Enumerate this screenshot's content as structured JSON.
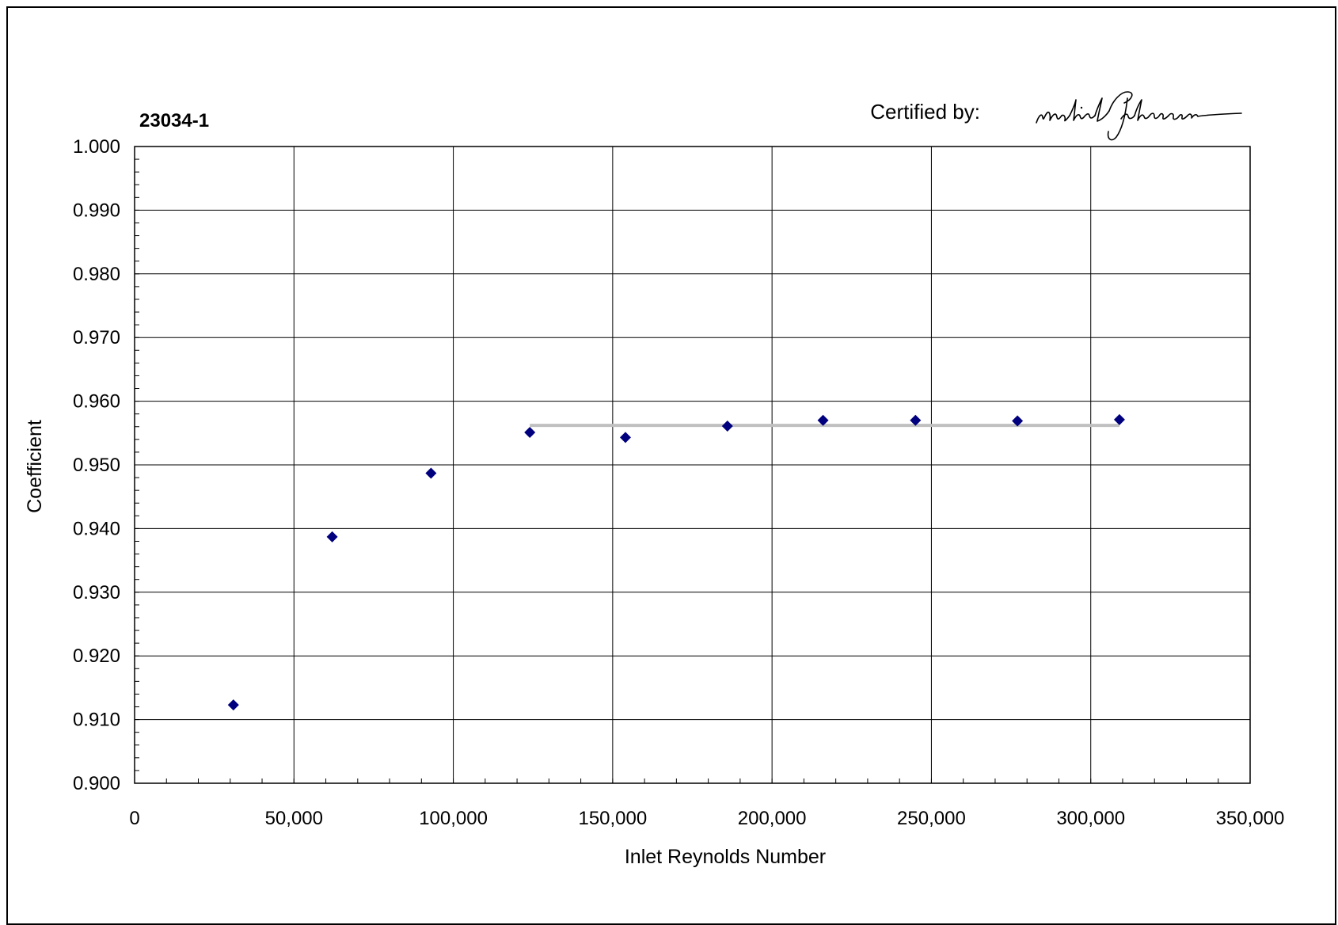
{
  "chart_data": {
    "type": "scatter",
    "title": "23034-1",
    "certification": {
      "label": "Certified by:",
      "signature": "Michael Johnson"
    },
    "xlabel": "Inlet Reynolds Number",
    "ylabel": "Coefficient",
    "xlim": [
      0,
      350000
    ],
    "ylim": [
      0.9,
      1.0
    ],
    "x_ticks": [
      {
        "value": 0,
        "label": "0"
      },
      {
        "value": 50000,
        "label": "50,000"
      },
      {
        "value": 100000,
        "label": "100,000"
      },
      {
        "value": 150000,
        "label": "150,000"
      },
      {
        "value": 200000,
        "label": "200,000"
      },
      {
        "value": 250000,
        "label": "250,000"
      },
      {
        "value": 300000,
        "label": "300,000"
      },
      {
        "value": 350000,
        "label": "350,000"
      }
    ],
    "y_ticks": [
      {
        "value": 0.9,
        "label": "0.900"
      },
      {
        "value": 0.91,
        "label": "0.910"
      },
      {
        "value": 0.92,
        "label": "0.920"
      },
      {
        "value": 0.93,
        "label": "0.930"
      },
      {
        "value": 0.94,
        "label": "0.940"
      },
      {
        "value": 0.95,
        "label": "0.950"
      },
      {
        "value": 0.96,
        "label": "0.960"
      },
      {
        "value": 0.97,
        "label": "0.970"
      },
      {
        "value": 0.98,
        "label": "0.980"
      },
      {
        "value": 0.99,
        "label": "0.990"
      },
      {
        "value": 1.0,
        "label": "1.000"
      }
    ],
    "grid": true,
    "series": [
      {
        "marker": "diamond",
        "color": "#00007f",
        "x": [
          31000,
          62000,
          93000,
          124000,
          154000,
          186000,
          216000,
          245000,
          277000,
          309000
        ],
        "y": [
          0.9123,
          0.9387,
          0.9487,
          0.9551,
          0.9543,
          0.9561,
          0.957,
          0.957,
          0.9569,
          0.9571
        ]
      }
    ],
    "reference_line": {
      "color": "#c0c0c0",
      "x": [
        124000,
        309000
      ],
      "y": [
        0.9562,
        0.9562
      ]
    }
  }
}
